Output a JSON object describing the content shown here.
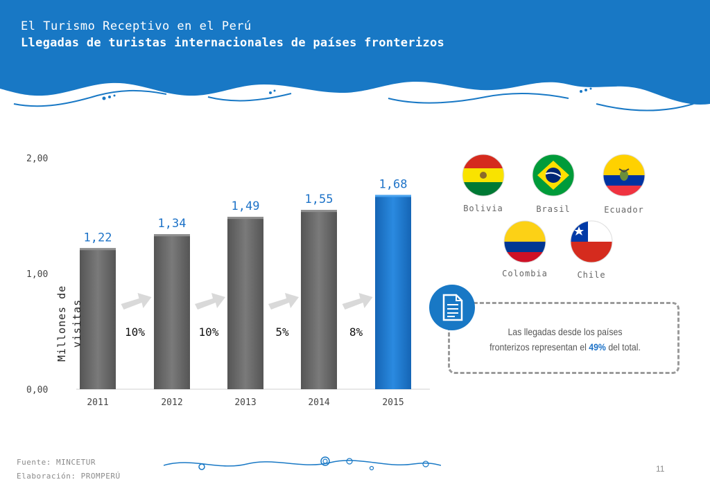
{
  "header": {
    "title": "El Turismo Receptivo en el Perú",
    "subtitle": "Llegadas de turistas internacionales de países fronterizos"
  },
  "chart_data": {
    "type": "bar",
    "categories": [
      "2011",
      "2012",
      "2013",
      "2014",
      "2015"
    ],
    "values": [
      1.22,
      1.34,
      1.49,
      1.55,
      1.68
    ],
    "value_labels": [
      "1,22",
      "1,34",
      "1,49",
      "1,55",
      "1,68"
    ],
    "growth_labels": [
      "10%",
      "10%",
      "5%",
      "8%"
    ],
    "y_ticks": [
      0,
      1,
      2
    ],
    "y_tick_labels": [
      "0,00",
      "1,00",
      "2,00"
    ],
    "ylim": [
      0,
      2
    ],
    "ylabel": "Millones de visitas",
    "highlight_index": 4,
    "colors": {
      "bar": "#6b6b6b",
      "highlight": "#1e78d0",
      "label": "#1e73c8",
      "arrow": "#d9d9d9"
    }
  },
  "flags": [
    {
      "name": "Bolivia",
      "icon": "bolivia-flag-icon"
    },
    {
      "name": "Brasil",
      "icon": "brazil-flag-icon"
    },
    {
      "name": "Ecuador",
      "icon": "ecuador-flag-icon"
    },
    {
      "name": "Colombia",
      "icon": "colombia-flag-icon"
    },
    {
      "name": "Chile",
      "icon": "chile-flag-icon"
    }
  ],
  "note": {
    "line1": "Las llegadas desde los países",
    "line2_pre": "fronterizos representan el ",
    "highlight": "49%",
    "line2_post": " del total."
  },
  "footer": {
    "source": "Fuente: MINCETUR",
    "elaboration": "Elaboración: PROMPERÚ",
    "page": "11"
  },
  "colors": {
    "header": "#1878c5",
    "accent": "#1e73c8"
  }
}
